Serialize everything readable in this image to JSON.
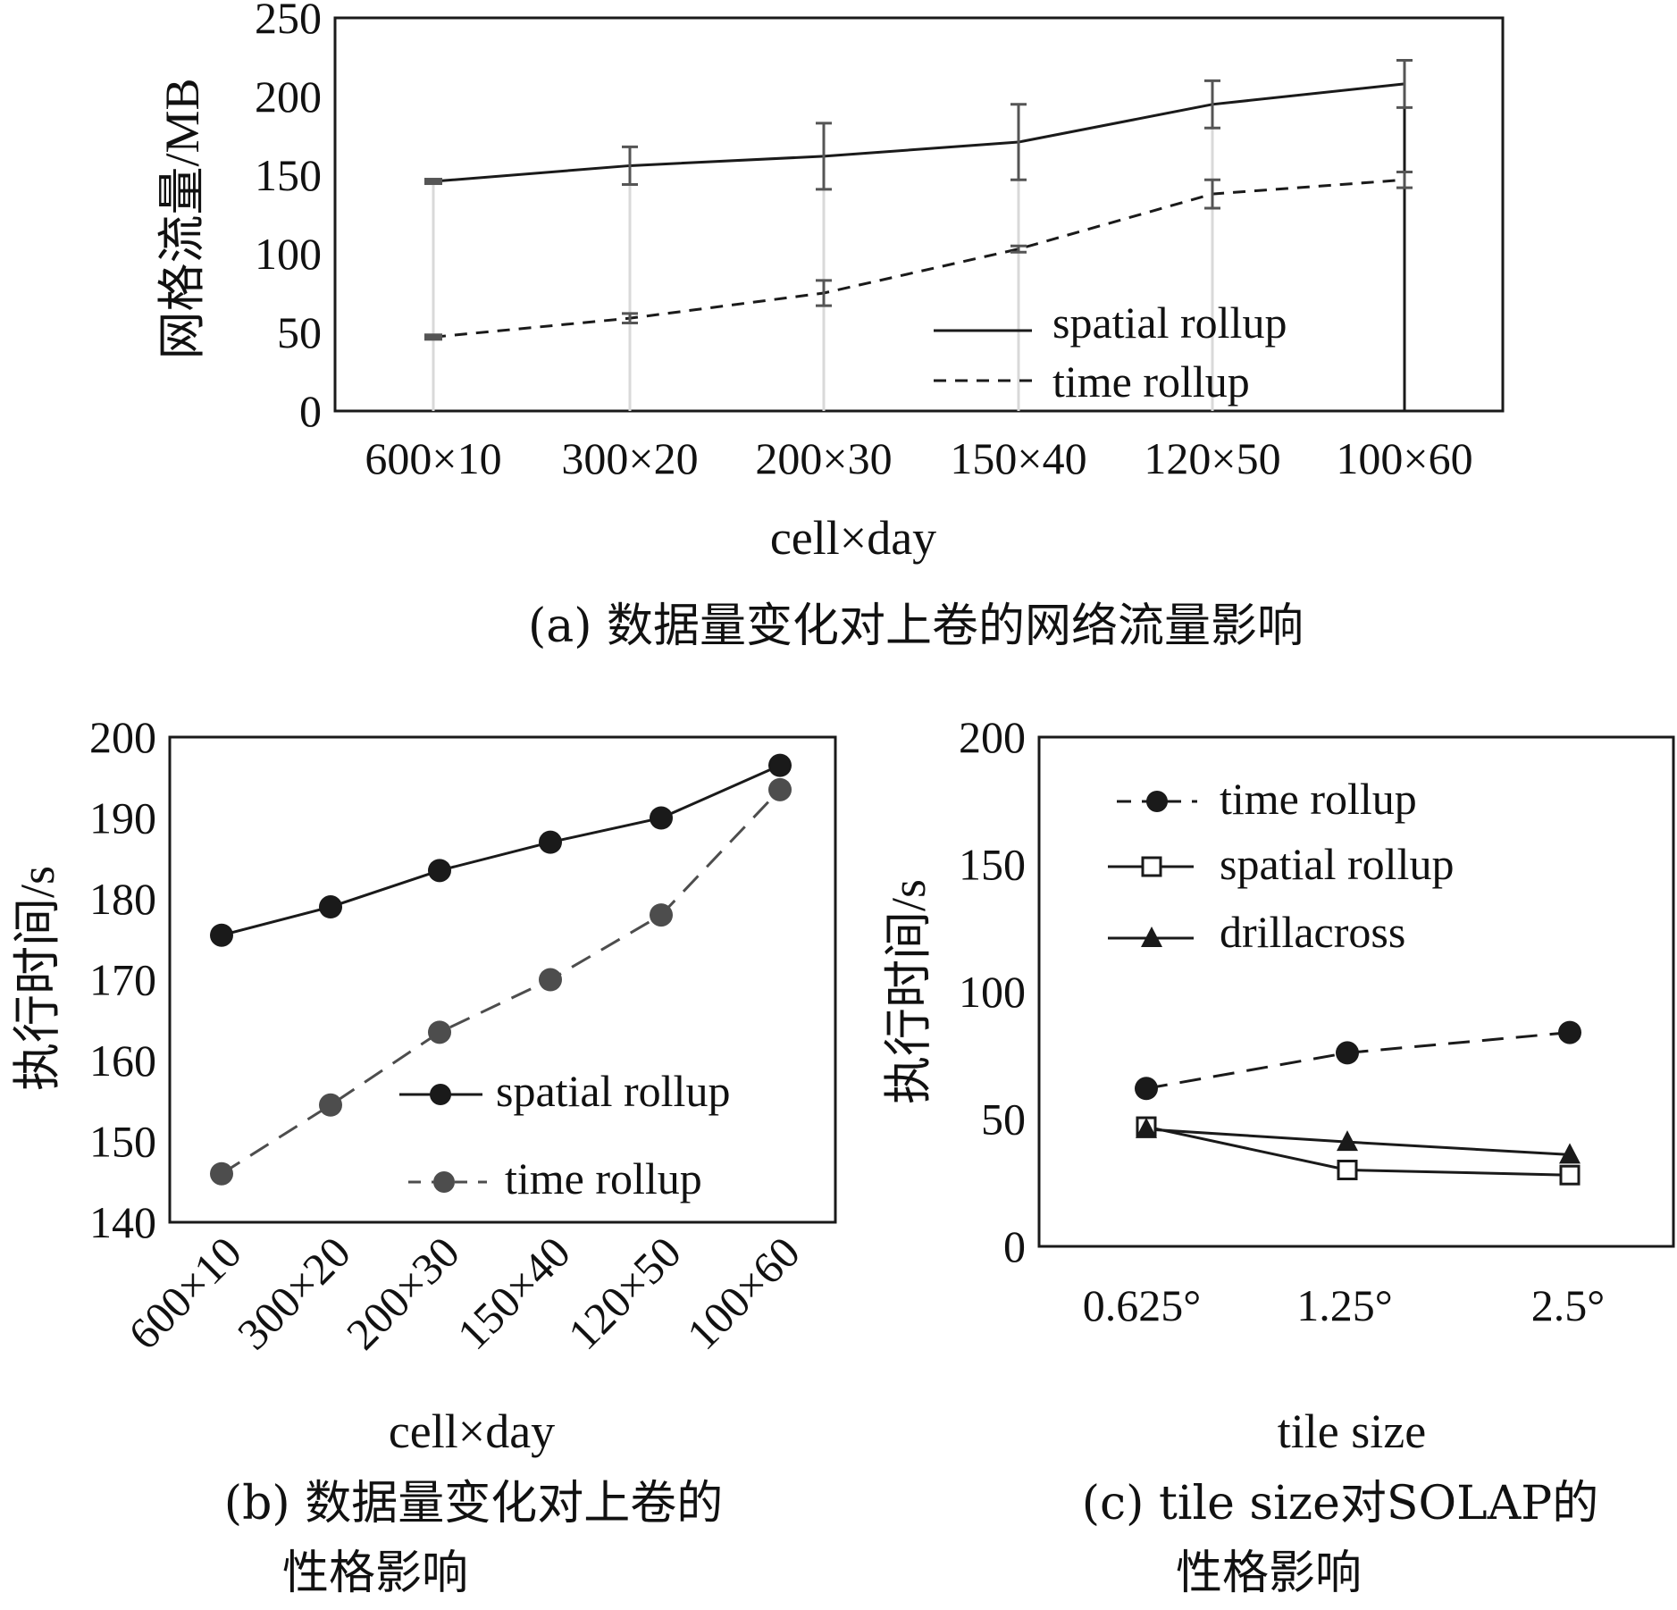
{
  "chart_data": [
    {
      "id": "a",
      "type": "line",
      "title": "(a) 数据量变化对上卷的网络流量影响",
      "xlabel": "cell×day",
      "ylabel": "网格流量/MB",
      "categories": [
        "600×10",
        "300×20",
        "200×30",
        "150×40",
        "120×50",
        "100×60"
      ],
      "ylim": [
        0,
        250
      ],
      "yticks": [
        "250",
        "200",
        "150",
        "100",
        "50",
        "0"
      ],
      "grid": false,
      "legend_position": "bottom-right",
      "series": [
        {
          "name": "spatial rollup",
          "style": "solid",
          "values": [
            146,
            156,
            162,
            171,
            195,
            208
          ],
          "errors": [
            0,
            12,
            21,
            24,
            15,
            15
          ]
        },
        {
          "name": "time rollup",
          "style": "dashed",
          "values": [
            47,
            59,
            75,
            103,
            138,
            147
          ],
          "errors": [
            0,
            3,
            8,
            2,
            9,
            5
          ]
        }
      ]
    },
    {
      "id": "b",
      "type": "line",
      "title_line1": "(b) 数据量变化对上卷的",
      "title_line2": "性格影响",
      "xlabel": "cell×day",
      "ylabel": "执行时间/s",
      "categories": [
        "600×10",
        "300×20",
        "200×30",
        "150×40",
        "120×50",
        "100×60"
      ],
      "ylim": [
        140,
        200
      ],
      "yticks": [
        "200",
        "190",
        "180",
        "170",
        "160",
        "150",
        "140"
      ],
      "grid": false,
      "legend_position": "bottom-right",
      "series": [
        {
          "name": "spatial rollup",
          "style": "solid",
          "color": "#1a1a1a",
          "values": [
            175.5,
            179,
            183.5,
            187,
            190,
            196.5
          ]
        },
        {
          "name": "time rollup",
          "style": "dashed",
          "color": "#4d4d4d",
          "values": [
            146,
            154.5,
            163.5,
            170,
            178,
            193.5
          ]
        }
      ]
    },
    {
      "id": "c",
      "type": "line",
      "title_line1": "(c) tile size对SOLAP的",
      "title_line2": "性格影响",
      "xlabel": "tile size",
      "ylabel": "执行时间/s",
      "categories": [
        "0.625°",
        "1.25°",
        "2.5°"
      ],
      "ylim": [
        0,
        200
      ],
      "yticks": [
        "200",
        "150",
        "100",
        "50",
        "0"
      ],
      "grid": false,
      "legend_position": "top-left",
      "series": [
        {
          "name": "time rollup",
          "style": "dashed",
          "marker": "circle",
          "values": [
            62,
            76,
            84
          ]
        },
        {
          "name": "spatial rollup",
          "style": "solid",
          "marker": "square",
          "values": [
            47,
            30,
            28
          ]
        },
        {
          "name": "drillacross",
          "style": "solid",
          "marker": "triangle",
          "values": [
            46,
            41,
            36
          ]
        }
      ]
    }
  ],
  "colors": {
    "ink": "#1a1a1a",
    "grey": "#4d4d4d",
    "errorbar": "#555555",
    "stem": "#d9d9d9"
  }
}
